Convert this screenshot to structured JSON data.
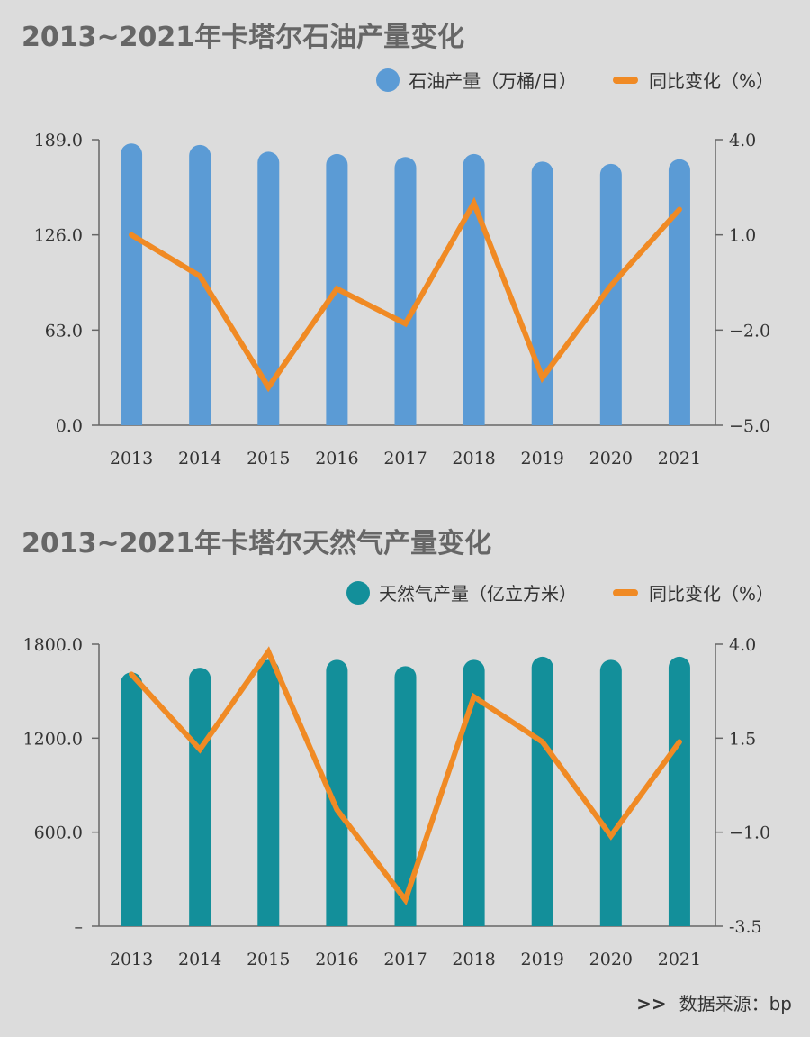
{
  "colors": {
    "oil_bar": "#5b9bd5",
    "gas_bar": "#138f9a",
    "line": "#f08a24",
    "axis": "#666666"
  },
  "source": {
    "arrow": ">>",
    "text": "数据来源：bp"
  },
  "chart_data": [
    {
      "type": "bar",
      "title": "2013~2021年卡塔尔石油产量变化",
      "categories": [
        "2013",
        "2014",
        "2015",
        "2016",
        "2017",
        "2018",
        "2019",
        "2020",
        "2021"
      ],
      "series": [
        {
          "name": "石油产量（万桶/日）",
          "type": "bar",
          "axis": "left",
          "values": [
            186.5,
            185.5,
            181.0,
            179.5,
            177.5,
            179.5,
            174.5,
            173.0,
            176.0
          ]
        },
        {
          "name": "同比变化（%）",
          "type": "line",
          "axis": "right",
          "values": [
            1.0,
            -0.3,
            -3.8,
            -0.7,
            -1.8,
            2.0,
            -3.5,
            -0.6,
            1.8
          ]
        }
      ],
      "left_axis": {
        "min": 0,
        "max": 189,
        "ticks": [
          "0.0",
          "63.0",
          "126.0",
          "189.0"
        ]
      },
      "right_axis": {
        "min": -5,
        "max": 4,
        "ticks": [
          "−5.0",
          "−2.0",
          "1.0",
          "4.0"
        ]
      }
    },
    {
      "type": "bar",
      "title": "2013~2021年卡塔尔天然气产量变化",
      "categories": [
        "2013",
        "2014",
        "2015",
        "2016",
        "2017",
        "2018",
        "2019",
        "2020",
        "2021"
      ],
      "series": [
        {
          "name": "天然气产量（亿立方米）",
          "type": "bar",
          "axis": "left",
          "values": [
            1620,
            1650,
            1700,
            1700,
            1660,
            1700,
            1720,
            1700,
            1720
          ]
        },
        {
          "name": "同比变化（%）",
          "type": "line",
          "axis": "right",
          "values": [
            3.2,
            1.2,
            3.8,
            -0.4,
            -2.8,
            2.6,
            1.4,
            -1.1,
            1.4
          ]
        }
      ],
      "left_axis": {
        "min": 0,
        "max": 1800,
        "ticks": [
          "–",
          "600.0",
          "1200.0",
          "1800.0"
        ]
      },
      "right_axis": {
        "min": -3.5,
        "max": 4,
        "ticks": [
          "-3.5",
          "−1.0",
          "1.5",
          "4.0"
        ]
      }
    }
  ]
}
